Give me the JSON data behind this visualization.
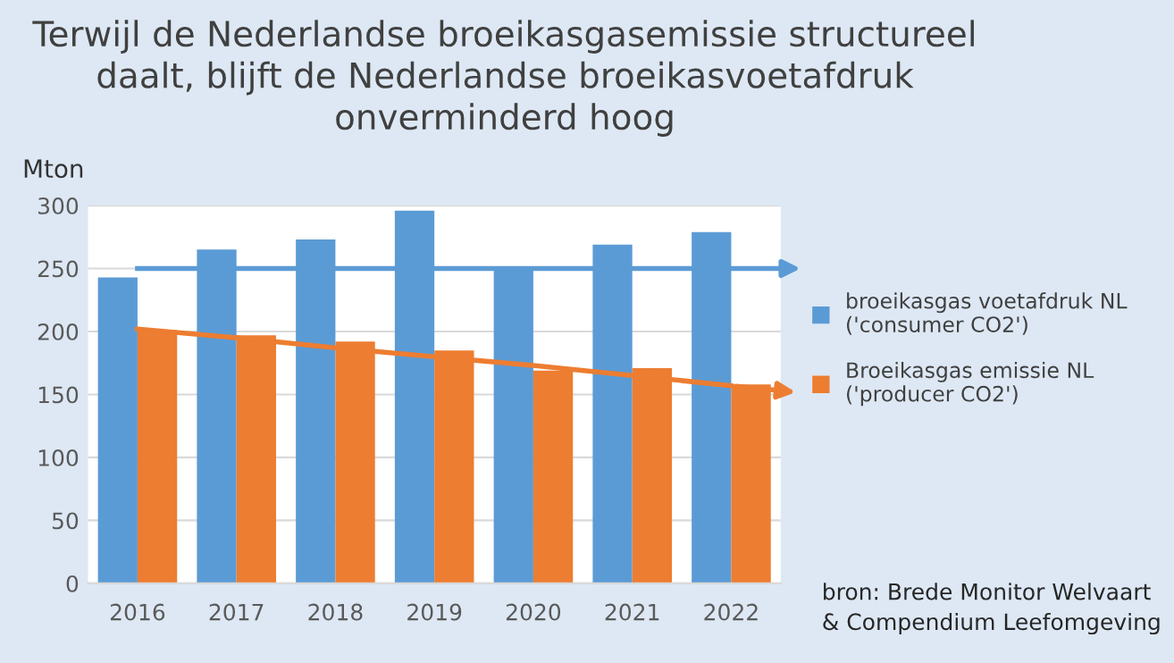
{
  "chart_data": {
    "type": "bar",
    "title": "Terwijl de Nederlandse broeikasgasemissie structureel\ndaalt, blijft de Nederlandse broeikasvoetafdruk\nonverminderd hoog",
    "ylabel": "Mton",
    "categories": [
      "2016",
      "2017",
      "2018",
      "2019",
      "2020",
      "2021",
      "2022"
    ],
    "series": [
      {
        "name": "broeikasgas voetafdruk NL\n('consumer CO2')",
        "color": "#5b9bd5",
        "values": [
          243,
          265,
          273,
          296,
          251,
          269,
          279
        ]
      },
      {
        "name": "Broeikasgas emissie NL\n('producer CO2')",
        "color": "#ed7d31",
        "values": [
          201,
          197,
          192,
          185,
          169,
          171,
          158
        ]
      },
      {
        "type": "line",
        "color": "#ed7d31",
        "values": [
          202,
          195,
          187,
          180,
          173,
          165,
          157
        ]
      }
    ],
    "ref_lines": [
      {
        "axis": "y",
        "value": 250,
        "color": "#5b9bd5"
      }
    ],
    "ylim": [
      0,
      300
    ],
    "yticks": [
      0,
      50,
      100,
      150,
      200,
      250,
      300
    ],
    "grid": "y",
    "legend": "right",
    "annotations": [
      "bron: Brede Monitor Welvaart\n& Compendium Leefomgeving"
    ]
  }
}
